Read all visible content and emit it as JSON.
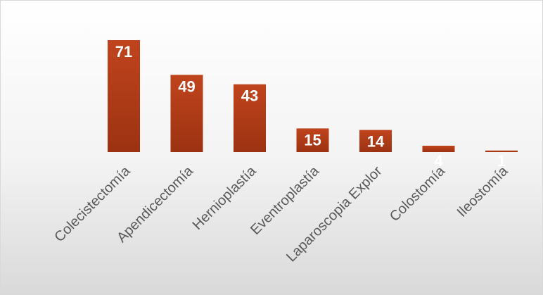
{
  "chart_data": {
    "type": "bar",
    "categories": [
      "Colecistectomía",
      "Apendicectomía",
      "Hernioplastía",
      "Eventroplastía",
      "Laparoscopia Explor",
      "Colostomía",
      "Ileostomía"
    ],
    "values": [
      71,
      49,
      43,
      15,
      14,
      4,
      1
    ],
    "data_labels": [
      "71",
      "49",
      "43",
      "15",
      "14",
      "4",
      "1"
    ],
    "title": "",
    "xlabel": "",
    "ylabel": "",
    "ylim": [
      0,
      71
    ],
    "grid": false,
    "legend": "none",
    "colors": {
      "bar_top": "#c0441d",
      "bar_bottom": "#9c3212",
      "label_text": "#ffffff",
      "category_text": "#595959",
      "background_top": "#ffffff",
      "background_bottom": "#d9d9d9",
      "border": "#d9d9d9"
    }
  }
}
